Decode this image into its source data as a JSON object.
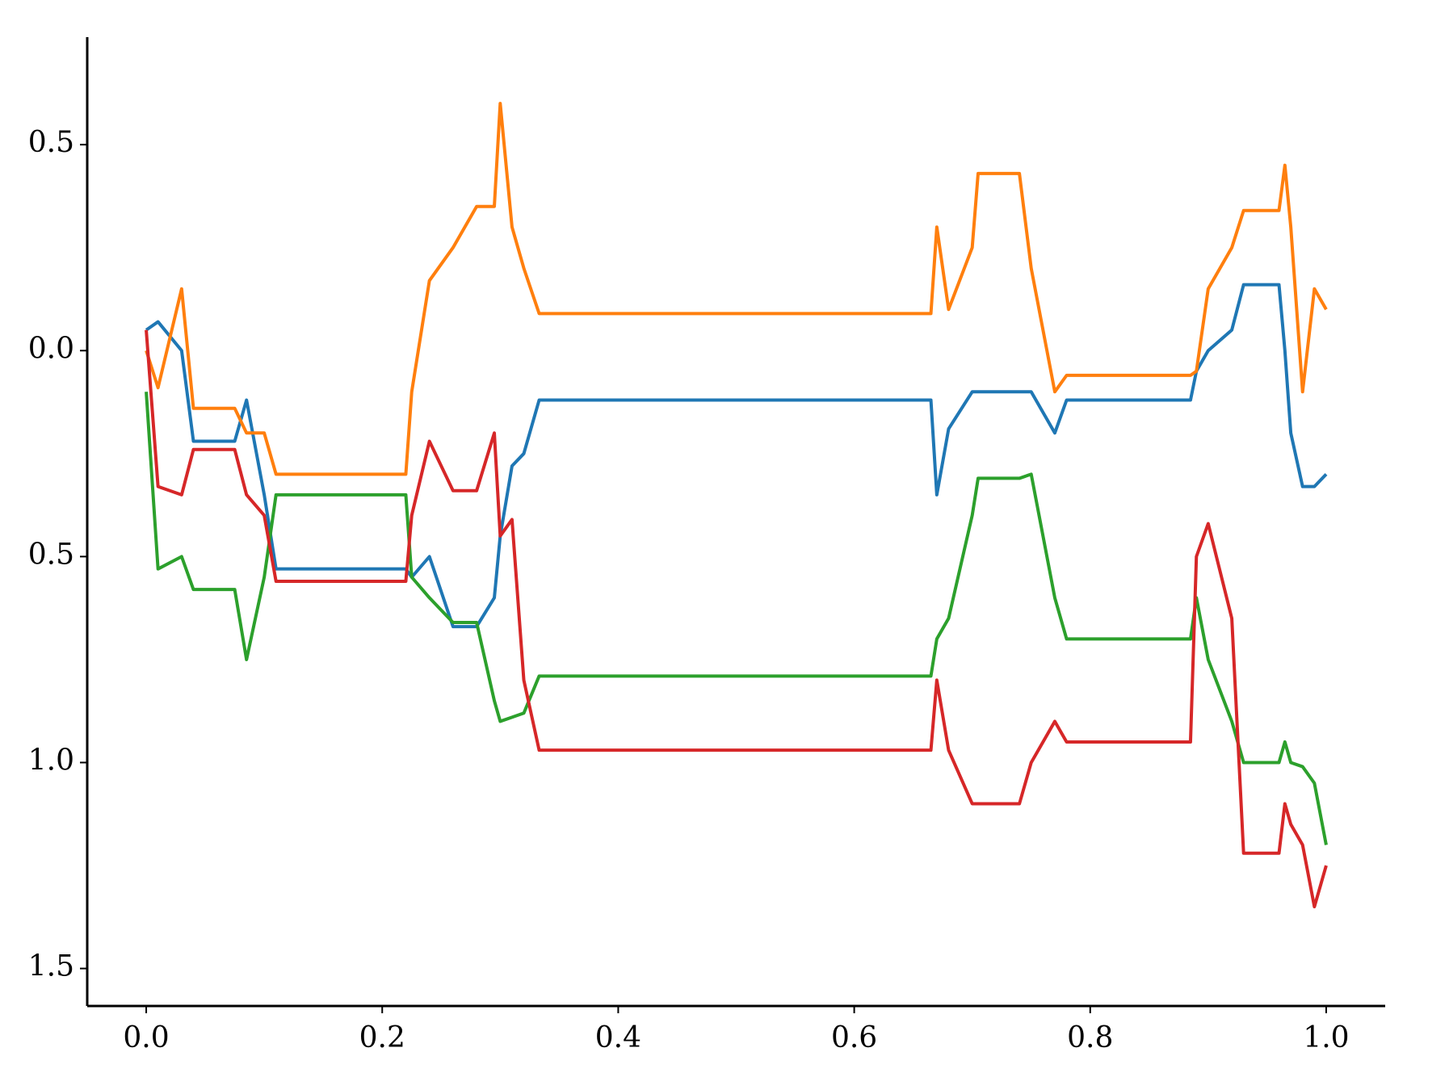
{
  "chart_data": {
    "type": "line",
    "x": [
      0,
      0.01,
      0.03,
      0.04,
      0.075,
      0.085,
      0.1,
      0.11,
      0.22,
      0.225,
      0.24,
      0.26,
      0.28,
      0.295,
      0.3,
      0.31,
      0.32,
      0.333,
      0.665,
      0.67,
      0.68,
      0.7,
      0.705,
      0.74,
      0.75,
      0.77,
      0.78,
      0.885,
      0.89,
      0.9,
      0.92,
      0.93,
      0.96,
      0.965,
      0.97,
      0.98,
      0.99,
      1.0
    ],
    "series": [
      {
        "color": "#1f77b4",
        "values": [
          0.05,
          0.07,
          0.0,
          -0.22,
          -0.22,
          -0.12,
          -0.35,
          -0.53,
          -0.53,
          -0.55,
          -0.5,
          -0.67,
          -0.67,
          -0.6,
          -0.45,
          -0.28,
          -0.25,
          -0.12,
          -0.12,
          -0.35,
          -0.19,
          -0.1,
          -0.1,
          -0.1,
          -0.1,
          -0.2,
          -0.12,
          -0.12,
          -0.05,
          0.0,
          0.05,
          0.16,
          0.16,
          0.0,
          -0.2,
          -0.33,
          -0.33,
          -0.3
        ]
      },
      {
        "color": "#ff7f0e",
        "values": [
          0.0,
          -0.09,
          0.15,
          -0.14,
          -0.14,
          -0.2,
          -0.2,
          -0.3,
          -0.3,
          -0.1,
          0.17,
          0.25,
          0.35,
          0.35,
          0.6,
          0.3,
          0.2,
          0.09,
          0.09,
          0.3,
          0.1,
          0.25,
          0.43,
          0.43,
          0.2,
          -0.1,
          -0.06,
          -0.06,
          -0.05,
          0.15,
          0.25,
          0.34,
          0.34,
          0.45,
          0.3,
          -0.1,
          0.15,
          0.1
        ]
      },
      {
        "color": "#2ca02c",
        "values": [
          -0.1,
          -0.53,
          -0.5,
          -0.58,
          -0.58,
          -0.75,
          -0.55,
          -0.35,
          -0.35,
          -0.55,
          -0.6,
          -0.66,
          -0.66,
          -0.85,
          -0.9,
          -0.89,
          -0.88,
          -0.79,
          -0.79,
          -0.7,
          -0.65,
          -0.4,
          -0.31,
          -0.31,
          -0.3,
          -0.6,
          -0.7,
          -0.7,
          -0.6,
          -0.75,
          -0.9,
          -1.0,
          -1.0,
          -0.95,
          -1.0,
          -1.01,
          -1.05,
          -1.2
        ]
      },
      {
        "color": "#d62728",
        "values": [
          0.05,
          -0.33,
          -0.35,
          -0.24,
          -0.24,
          -0.35,
          -0.4,
          -0.56,
          -0.56,
          -0.4,
          -0.22,
          -0.34,
          -0.34,
          -0.2,
          -0.45,
          -0.41,
          -0.8,
          -0.97,
          -0.97,
          -0.8,
          -0.97,
          -1.1,
          -1.1,
          -1.1,
          -1.0,
          -0.9,
          -0.95,
          -0.95,
          -0.5,
          -0.42,
          -0.65,
          -1.22,
          -1.22,
          -1.1,
          -1.15,
          -1.2,
          -1.35,
          -1.25
        ]
      }
    ],
    "xlim": [
      -0.05,
      1.05
    ],
    "ylim": [
      -1.591,
      0.761
    ],
    "xticks": [
      {
        "value": 0,
        "label": "0.0"
      },
      0.2,
      0.4,
      0.6,
      0.8,
      {
        "value": 1,
        "label": "1.0"
      }
    ],
    "yticks": [
      0.5,
      {
        "value": 0,
        "label": "0.0"
      },
      {
        "value": -0.5,
        "label": "0.5"
      },
      {
        "value": -1,
        "label": "1.0"
      },
      {
        "value": -1.5,
        "label": "1.5"
      }
    ]
  }
}
